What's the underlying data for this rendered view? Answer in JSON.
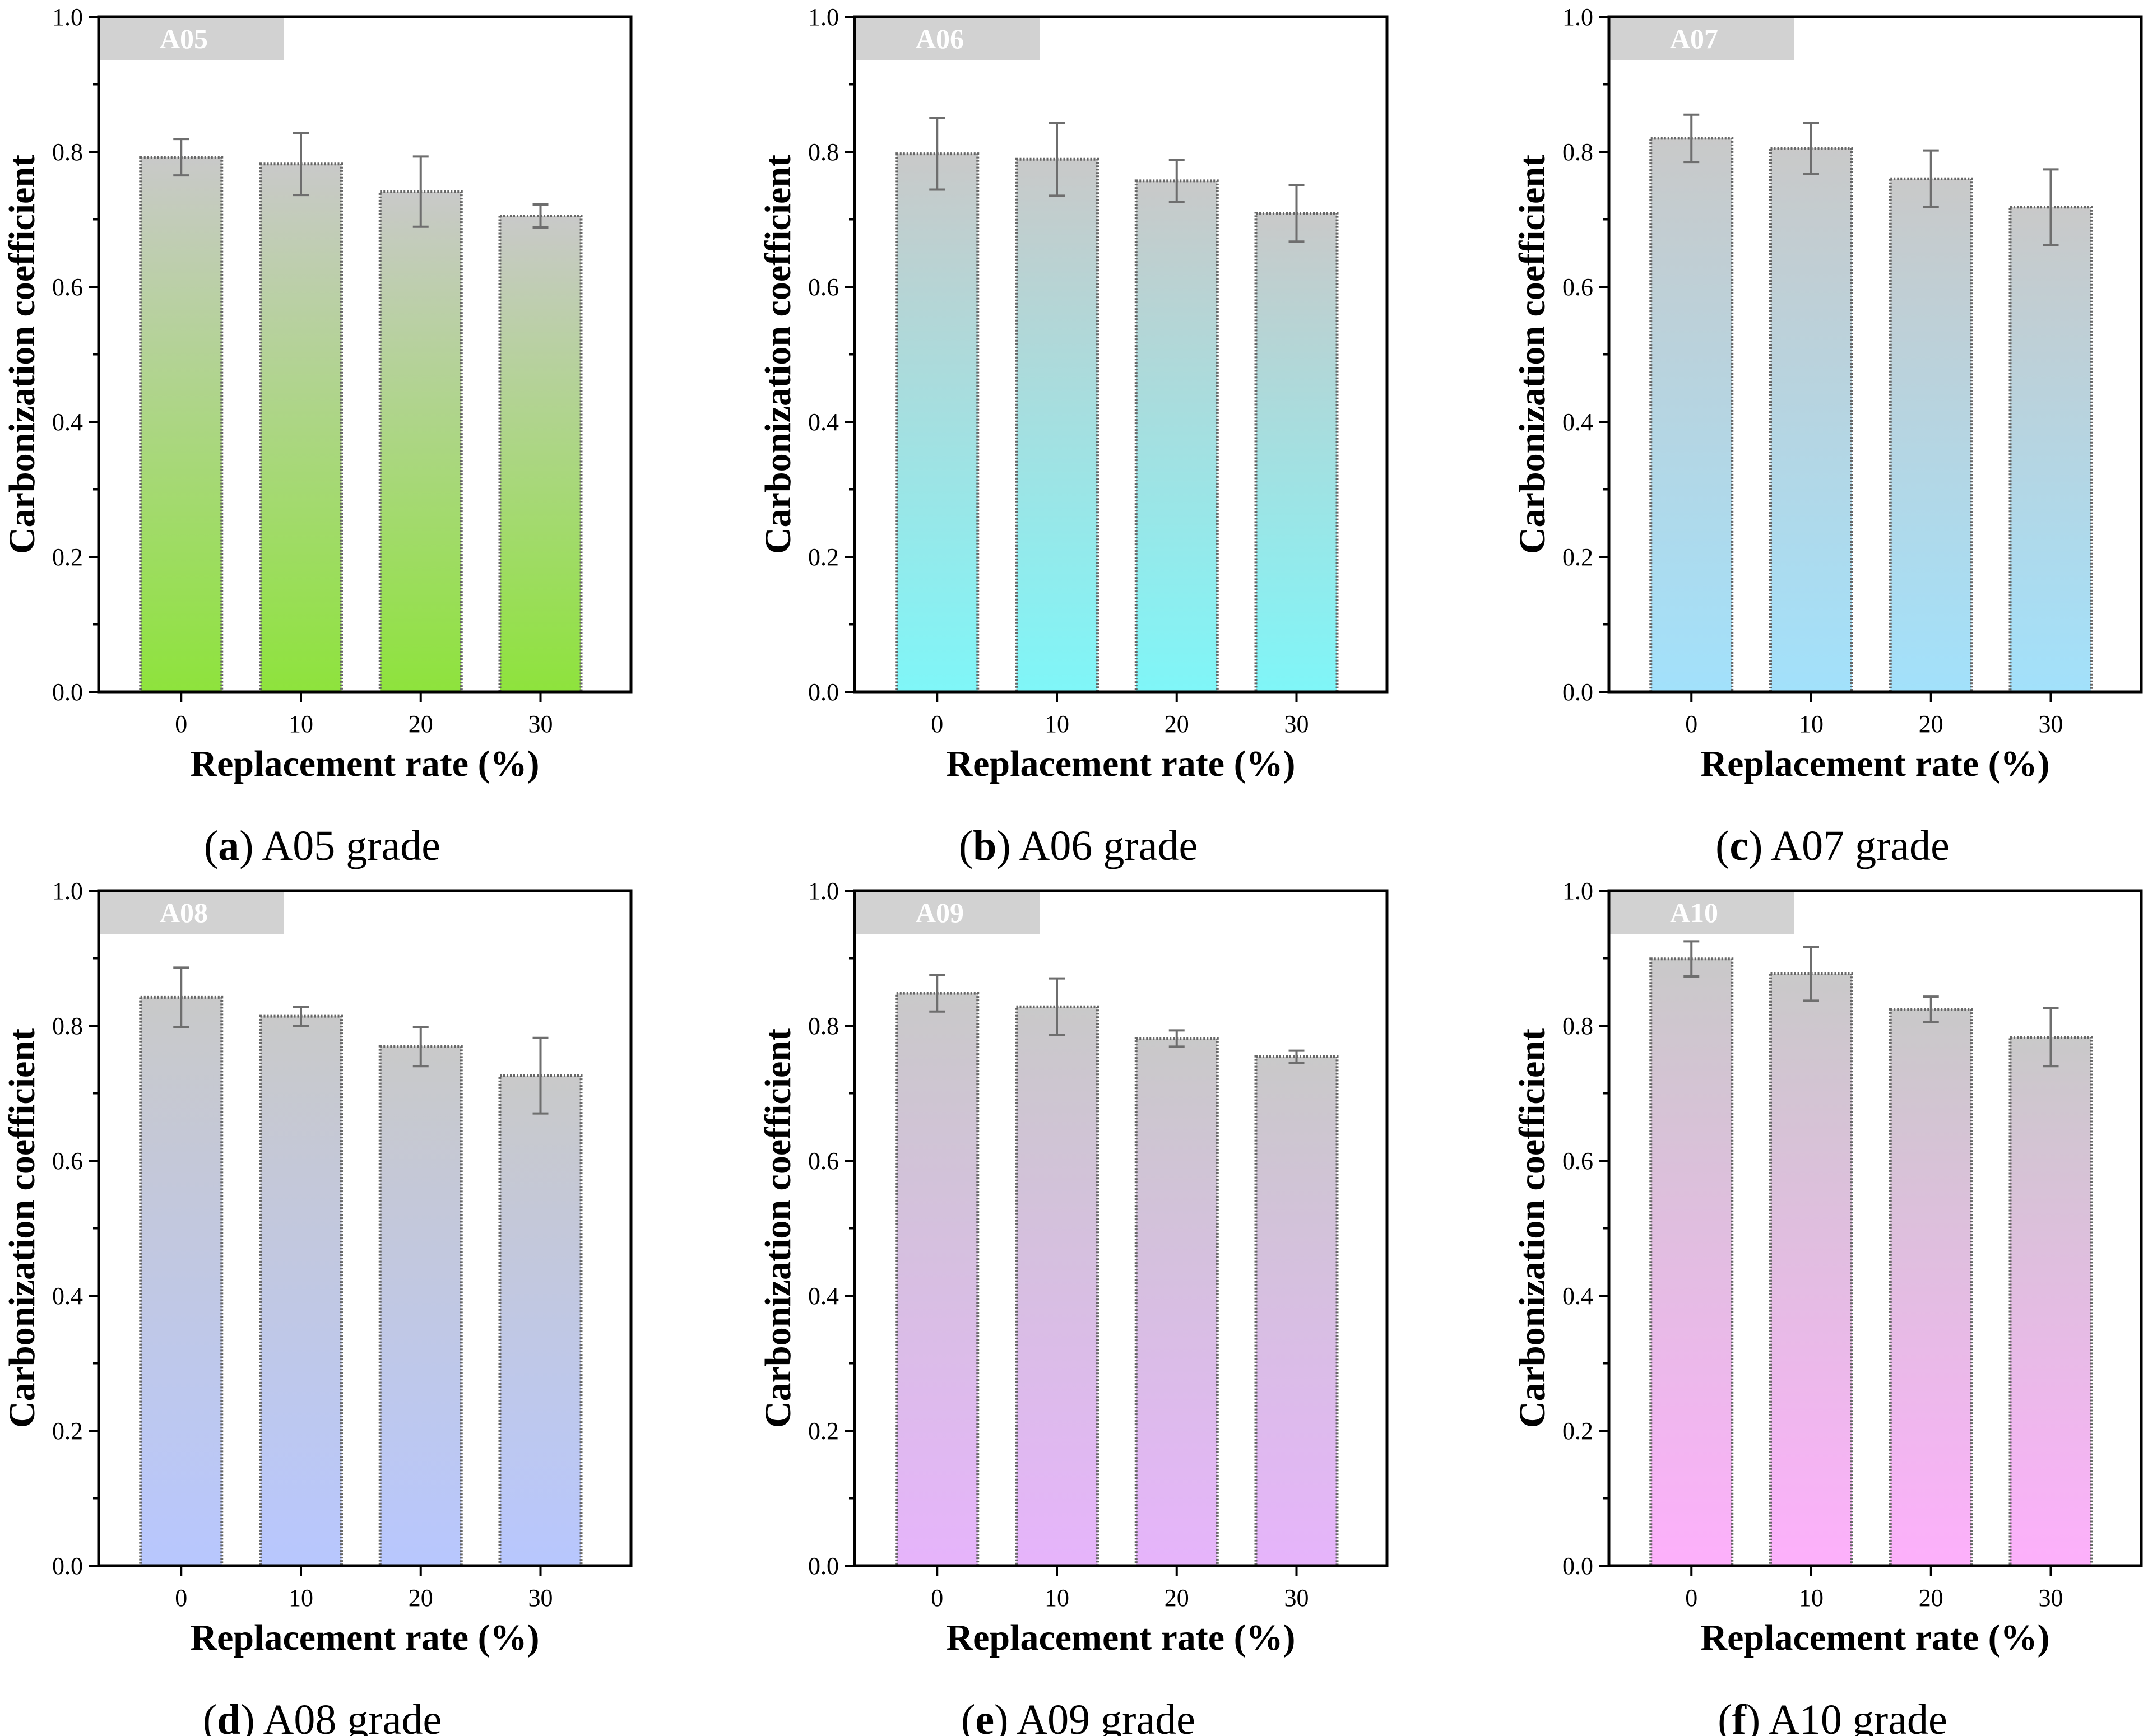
{
  "figure": {
    "charts": [
      {
        "tag": "A05",
        "caption_letter": "a",
        "caption_text": " A05 grade",
        "caption_open": "(",
        "caption_close": ")",
        "color_top": "#c9c9c9",
        "color_bottom": "#8ee33c"
      },
      {
        "tag": "A06",
        "caption_letter": "b",
        "caption_text": " A06 grade",
        "caption_open": "(",
        "caption_close": ")",
        "color_top": "#c9c9c9",
        "color_bottom": "#7ff6f8"
      },
      {
        "tag": "A07",
        "caption_letter": "c",
        "caption_text": " A07 grade",
        "caption_open": "(",
        "caption_close": ")",
        "color_top": "#c9c9c9",
        "color_bottom": "#a2e1fb"
      },
      {
        "tag": "A08",
        "caption_letter": "d",
        "caption_text": " A08 grade",
        "caption_open": "(",
        "caption_close": ")",
        "color_top": "#c9c9c9",
        "color_bottom": "#b8c7fe"
      },
      {
        "tag": "A09",
        "caption_letter": "e",
        "caption_text": " A09 grade",
        "caption_open": "(",
        "caption_close": ")",
        "color_top": "#c9c9c9",
        "color_bottom": "#e6b4fb"
      },
      {
        "tag": "A10",
        "caption_letter": "f",
        "caption_text": " A10 grade",
        "caption_open": "(",
        "caption_close": ")",
        "color_top": "#c9c9c9",
        "color_bottom": "#fdb0fb"
      }
    ]
  },
  "chart_data": [
    {
      "type": "bar",
      "title": "A05",
      "xlabel": "Replacement rate (%)",
      "ylabel": "Carbonization coefficient",
      "categories": [
        "0",
        "10",
        "20",
        "30"
      ],
      "values": [
        0.792,
        0.782,
        0.741,
        0.705
      ],
      "errors": [
        0.027,
        0.046,
        0.052,
        0.017
      ],
      "ylim": [
        0.0,
        1.0
      ],
      "yticks": [
        "0.0",
        "0.2",
        "0.4",
        "0.6",
        "0.8",
        "1.0"
      ]
    },
    {
      "type": "bar",
      "title": "A06",
      "xlabel": "Replacement rate (%)",
      "ylabel": "Carbonization coefficient",
      "categories": [
        "0",
        "10",
        "20",
        "30"
      ],
      "values": [
        0.797,
        0.789,
        0.757,
        0.709
      ],
      "errors": [
        0.053,
        0.054,
        0.031,
        0.042
      ],
      "ylim": [
        0.0,
        1.0
      ],
      "yticks": [
        "0.0",
        "0.2",
        "0.4",
        "0.6",
        "0.8",
        "1.0"
      ]
    },
    {
      "type": "bar",
      "title": "A07",
      "xlabel": "Replacement rate (%)",
      "ylabel": "Carbonization coefficient",
      "categories": [
        "0",
        "10",
        "20",
        "30"
      ],
      "values": [
        0.82,
        0.805,
        0.76,
        0.718
      ],
      "errors": [
        0.035,
        0.038,
        0.042,
        0.056
      ],
      "ylim": [
        0.0,
        1.0
      ],
      "yticks": [
        "0.0",
        "0.2",
        "0.4",
        "0.6",
        "0.8",
        "1.0"
      ]
    },
    {
      "type": "bar",
      "title": "A08",
      "xlabel": "Replacement rate (%)",
      "ylabel": "Carbonization coefficient",
      "categories": [
        "0",
        "10",
        "20",
        "30"
      ],
      "values": [
        0.842,
        0.814,
        0.769,
        0.726
      ],
      "errors": [
        0.044,
        0.014,
        0.029,
        0.056
      ],
      "ylim": [
        0.0,
        1.0
      ],
      "yticks": [
        "0.0",
        "0.2",
        "0.4",
        "0.6",
        "0.8",
        "1.0"
      ]
    },
    {
      "type": "bar",
      "title": "A09",
      "xlabel": "Replacement rate (%)",
      "ylabel": "Carbonization coefficient",
      "categories": [
        "0",
        "10",
        "20",
        "30"
      ],
      "values": [
        0.848,
        0.828,
        0.781,
        0.754
      ],
      "errors": [
        0.027,
        0.042,
        0.012,
        0.009
      ],
      "ylim": [
        0.0,
        1.0
      ],
      "yticks": [
        "0.0",
        "0.2",
        "0.4",
        "0.6",
        "0.8",
        "1.0"
      ]
    },
    {
      "type": "bar",
      "title": "A10",
      "xlabel": "Replacement rate (%)",
      "ylabel": "Carbonization coefficient",
      "categories": [
        "0",
        "10",
        "20",
        "30"
      ],
      "values": [
        0.899,
        0.877,
        0.824,
        0.783
      ],
      "errors": [
        0.026,
        0.04,
        0.019,
        0.043
      ],
      "ylim": [
        0.0,
        1.0
      ],
      "yticks": [
        "0.0",
        "0.2",
        "0.4",
        "0.6",
        "0.8",
        "1.0"
      ]
    }
  ]
}
